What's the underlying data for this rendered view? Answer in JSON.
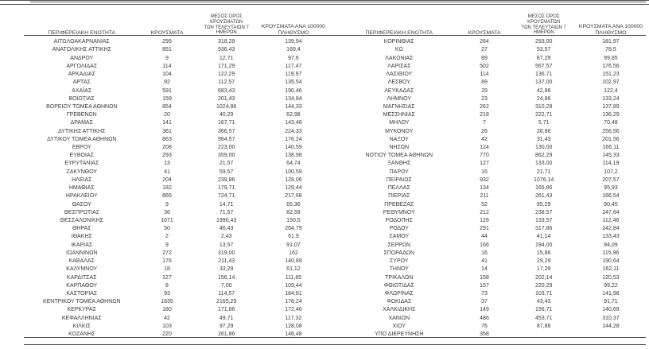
{
  "table": {
    "headers": {
      "region": "ΠΕΡΙΦΕΡΕΙΑΚΗ ΕΝΟΤΗΤΑ",
      "cases": "ΚΡΟΥΣΜΑΤΑ",
      "avg7_line1": "ΜΕΣΟΣ ΟΡΟΣ ΚΡΟΥΣΜΑΤΩΝ",
      "avg7_line2": "ΤΩΝ ΤΕΛΕΥΤΑΙΩΝ 7 ΗΜΕΡΩΝ",
      "per100k_line1": "ΚΡΟΥΣΜΑΤΑ ΑΝΑ 100000",
      "per100k_line2": "ΠΛΗΘΥΣΜΟ"
    },
    "left_rows": [
      [
        "ΑΙΤΩΛΟΑΚΑΡΝΑΝΙΑΣ",
        "295",
        "318,29",
        "139,94"
      ],
      [
        "ΑΝΑΤΟΛΙΚΗΣ ΑΤΤΙΚΗΣ",
        "851",
        "936,43",
        "169,4"
      ],
      [
        "ΑΝΔΡΟΥ",
        "9",
        "12,71",
        "97,6"
      ],
      [
        "ΑΡΓΟΛΙΔΑΣ",
        "114",
        "171,29",
        "117,47"
      ],
      [
        "ΑΡΚΑΔΙΑΣ",
        "104",
        "122,29",
        "119,97"
      ],
      [
        "ΑΡΤΑΣ",
        "92",
        "112,57",
        "135,54"
      ],
      [
        "ΑΧΑΪΑΣ",
        "591",
        "683,43",
        "190,46"
      ],
      [
        "ΒΟΙΩΤΙΑΣ",
        "159",
        "201,43",
        "134,84"
      ],
      [
        "ΒΟΡΕΙΟΥ ΤΟΜΕΑ ΑΘΗΝΩΝ",
        "854",
        "1024,86",
        "144,33"
      ],
      [
        "ΓΡΕΒΕΝΩΝ",
        "20",
        "40,29",
        "62,98"
      ],
      [
        "ΔΡΑΜΑΣ",
        "141",
        "167,71",
        "143,46"
      ],
      [
        "ΔΥΤΙΚΗΣ ΑΤΤΙΚΗΣ",
        "361",
        "366,57",
        "224,33"
      ],
      [
        "ΔΥΤΙΚΟΥ ΤΟΜΕΑ ΑΘΗΝΩΝ",
        "863",
        "964,57",
        "176,24"
      ],
      [
        "ΕΒΡΟΥ",
        "208",
        "223,00",
        "140,59"
      ],
      [
        "ΕΥΒΟΙΑΣ",
        "293",
        "359,00",
        "138,98"
      ],
      [
        "ΕΥΡΥΤΑΝΙΑΣ",
        "13",
        "21,57",
        "64,74"
      ],
      [
        "ΖΑΚΥΝΘΟΥ",
        "41",
        "59,57",
        "100,59"
      ],
      [
        "ΗΛΕΙΑΣ",
        "204",
        "239,86",
        "128,06"
      ],
      [
        "ΗΜΑΘΙΑΣ",
        "182",
        "179,71",
        "129,44"
      ],
      [
        "ΗΡΑΚΛΕΙΟΥ",
        "665",
        "724,71",
        "217,68"
      ],
      [
        "ΘΑΣΟΥ",
        "9",
        "14,71",
        "65,36"
      ],
      [
        "ΘΕΣΠΡΩΤΙΑΣ",
        "36",
        "71,57",
        "82,59"
      ],
      [
        "ΘΕΣΣΑΛΟΝΙΚΗΣ",
        "1671",
        "1990,43",
        "150,5"
      ],
      [
        "ΘΗΡΑΣ",
        "50",
        "46,43",
        "264,79"
      ],
      [
        "ΙΘΑΚΗΣ",
        "2",
        "2,43",
        "61,9"
      ],
      [
        "ΙΚΑΡΙΑΣ",
        "9",
        "13,57",
        "91,07"
      ],
      [
        "ΙΩΑΝΝΙΝΩΝ",
        "272",
        "319,00",
        "162"
      ],
      [
        "ΚΑΒΑΛΑΣ",
        "176",
        "211,43",
        "140,89"
      ],
      [
        "ΚΑΛΥΜΝΟΥ",
        "18",
        "33,29",
        "61,12"
      ],
      [
        "ΚΑΡΔΙΤΣΑΣ",
        "127",
        "156,14",
        "111,85"
      ],
      [
        "ΚΑΡΠΑΘΟΥ",
        "8",
        "7,00",
        "109,44"
      ],
      [
        "ΚΑΣΤΟΡΙΑΣ",
        "93",
        "114,57",
        "184,81"
      ],
      [
        "ΚΕΝΤΡΙΚΟΥ ΤΟΜΕΑ ΑΘΗΝΩΝ",
        "1835",
        "2165,29",
        "178,24"
      ],
      [
        "ΚΕΡΚΥΡΑΣ",
        "180",
        "171,86",
        "172,46"
      ],
      [
        "ΚΕΦΑΛΛΗΝΙΑΣ",
        "42",
        "49,71",
        "117,32"
      ],
      [
        "ΚΙΛΚΙΣ",
        "103",
        "97,29",
        "128,08"
      ],
      [
        "ΚΟΖΑΝΗΣ",
        "220",
        "261,86",
        "146,48"
      ]
    ],
    "right_rows": [
      [
        "ΚΟΡΙΝΘΙΑΣ",
        "264",
        "293,00",
        "181,97"
      ],
      [
        "ΚΩ",
        "27",
        "53,57",
        "78,5"
      ],
      [
        "ΛΑΚΩΝΙΑΣ",
        "89",
        "87,29",
        "99,85"
      ],
      [
        "ΛΑΡΙΣΑΣ",
        "502",
        "567,57",
        "176,56"
      ],
      [
        "ΛΑΣΙΘΙΟΥ",
        "114",
        "136,71",
        "151,23"
      ],
      [
        "ΛΕΣΒΟΥ",
        "89",
        "137,00",
        "102,97"
      ],
      [
        "ΛΕΥΚΑΔΑΣ",
        "29",
        "42,86",
        "122,4"
      ],
      [
        "ΛΗΜΝΟΥ",
        "23",
        "24,86",
        "133,24"
      ],
      [
        "ΜΑΓΝΗΣΙΑΣ",
        "262",
        "310,29",
        "137,89"
      ],
      [
        "ΜΕΣΣΗΝΙΑΣ",
        "218",
        "222,71",
        "136,29"
      ],
      [
        "ΜΗΛΟΥ",
        "7",
        "5,71",
        "70,48"
      ],
      [
        "ΜΥΚΟΝΟΥ",
        "26",
        "28,86",
        "256,56"
      ],
      [
        "ΝΑΞΟΥ",
        "42",
        "31,43",
        "201,56"
      ],
      [
        "ΝΗΣΩΝ",
        "124",
        "130,00",
        "166,11"
      ],
      [
        "ΝΟΤΙΟΥ ΤΟΜΕΑ ΑΘΗΝΩΝ",
        "770",
        "862,29",
        "145,33"
      ],
      [
        "ΞΑΝΘΗΣ",
        "127",
        "133,00",
        "114,19"
      ],
      [
        "ΠΑΡΟΥ",
        "16",
        "21,71",
        "107,2"
      ],
      [
        "ΠΕΙΡΑΙΩΣ",
        "932",
        "1076,14",
        "207,57"
      ],
      [
        "ΠΕΛΛΑΣ",
        "134",
        "165,86",
        "95,93"
      ],
      [
        "ΠΙΕΡΙΑΣ",
        "211",
        "261,43",
        "166,54"
      ],
      [
        "ΠΡΕΒΕΖΑΣ",
        "52",
        "85,29",
        "90,45"
      ],
      [
        "ΡΕΘΥΜΝΟΥ",
        "212",
        "238,57",
        "247,64"
      ],
      [
        "ΡΟΔΟΠΗΣ",
        "126",
        "133,57",
        "112,46"
      ],
      [
        "ΡΟΔΟΥ",
        "291",
        "317,86",
        "242,84"
      ],
      [
        "ΣΑΜΟΥ",
        "44",
        "41,14",
        "133,43"
      ],
      [
        "ΣΕΡΡΩΝ",
        "166",
        "194,00",
        "94,09"
      ],
      [
        "ΣΠΟΡΑΔΩΝ",
        "16",
        "15,86",
        "115,96"
      ],
      [
        "ΣΥΡΟΥ",
        "41",
        "29,29",
        "190,64"
      ],
      [
        "ΤΗΝΟΥ",
        "14",
        "17,29",
        "162,11"
      ],
      [
        "ΤΡΙΚΑΛΩΝ",
        "158",
        "202,14",
        "120,53"
      ],
      [
        "ΦΘΙΩΤΙΔΑΣ",
        "157",
        "220,29",
        "99,22"
      ],
      [
        "ΦΛΩΡΙΝΑΣ",
        "73",
        "103,71",
        "141,98"
      ],
      [
        "ΦΩΚΙΔΑΣ",
        "37",
        "43,43",
        "91,71"
      ],
      [
        "ΧΑΛΚΙΔΙΚΗΣ",
        "149",
        "156,71",
        "140,69"
      ],
      [
        "ΧΑΝΙΩΝ",
        "486",
        "453,71",
        "310,37"
      ],
      [
        "ΧΙΟΥ",
        "76",
        "87,86",
        "144,28"
      ],
      [
        "ΥΠΟ ΔΙΕΡΕΥΝΗΣΗ",
        "358",
        "",
        ""
      ]
    ]
  },
  "colors": {
    "background": "#ffffff",
    "text": "#3a3a3a",
    "rule": "#4d4d4d"
  }
}
